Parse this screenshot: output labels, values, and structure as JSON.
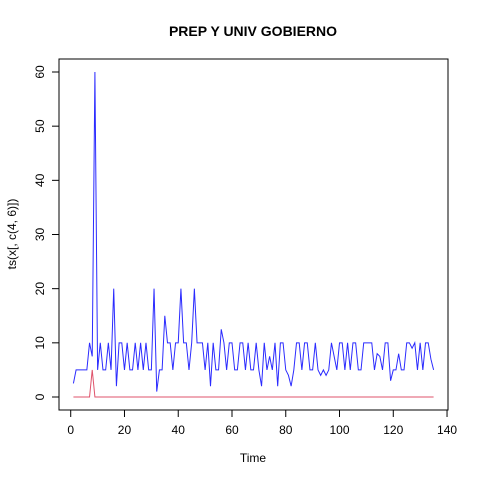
{
  "chart_data": {
    "type": "line",
    "title": "PREP Y UNIV GOBIERNO",
    "x_label": "Time",
    "y_label": "ts(x[, c(4, 6)])",
    "x": [
      1,
      2,
      3,
      4,
      5,
      6,
      7,
      8,
      9,
      10,
      11,
      12,
      13,
      14,
      15,
      16,
      17,
      18,
      19,
      20,
      21,
      22,
      23,
      24,
      25,
      26,
      27,
      28,
      29,
      30,
      31,
      32,
      33,
      34,
      35,
      36,
      37,
      38,
      39,
      40,
      41,
      42,
      43,
      44,
      45,
      46,
      47,
      48,
      49,
      50,
      51,
      52,
      53,
      54,
      55,
      56,
      57,
      58,
      59,
      60,
      61,
      62,
      63,
      64,
      65,
      66,
      67,
      68,
      69,
      70,
      71,
      72,
      73,
      74,
      75,
      76,
      77,
      78,
      79,
      80,
      81,
      82,
      83,
      84,
      85,
      86,
      87,
      88,
      89,
      90,
      91,
      92,
      93,
      94,
      95,
      96,
      97,
      98,
      99,
      100,
      101,
      102,
      103,
      104,
      105,
      106,
      107,
      108,
      109,
      110,
      111,
      112,
      113,
      114,
      115,
      116,
      117,
      118,
      119,
      120,
      121,
      122,
      123,
      124,
      125,
      126,
      127,
      128,
      129,
      130,
      131,
      132,
      133,
      134,
      135
    ],
    "series": [
      {
        "color": "#2b2bff",
        "values": [
          2.5,
          5,
          5,
          5,
          5,
          5,
          10,
          7.5,
          60,
          5,
          10,
          5,
          5,
          10,
          5,
          20,
          2,
          10,
          10,
          5,
          10,
          5,
          5,
          10,
          5,
          10,
          5,
          10,
          5,
          5,
          20,
          1,
          5,
          5,
          15,
          10,
          10,
          5,
          10,
          10,
          20,
          10,
          10,
          5,
          10,
          20,
          10,
          10,
          10,
          5,
          10,
          2,
          10,
          5,
          5,
          12.5,
          10,
          5,
          10,
          10,
          5,
          5,
          10,
          10,
          5,
          10,
          5,
          5,
          10,
          5,
          2,
          10,
          5,
          7.5,
          5,
          10,
          2,
          10,
          10,
          5,
          4,
          2,
          5,
          10,
          10,
          5,
          10,
          10,
          5,
          5,
          10,
          5,
          4,
          5,
          4,
          5,
          10,
          7.5,
          5,
          10,
          10,
          5,
          10,
          5,
          10,
          10,
          5,
          5,
          10,
          10,
          10,
          10,
          5,
          8,
          7.5,
          5,
          10,
          10,
          3,
          5,
          5,
          8,
          5,
          5,
          10,
          10,
          9,
          10,
          5,
          10,
          5,
          10,
          10,
          7,
          5
        ]
      },
      {
        "color": "#df536b",
        "values": [
          0,
          0,
          0,
          0,
          0,
          0,
          0,
          5,
          0,
          0,
          0,
          0,
          0,
          0,
          0,
          0,
          0,
          0,
          0,
          0,
          0,
          0,
          0,
          0,
          0,
          0,
          0,
          0,
          0,
          0,
          0,
          0,
          0,
          0,
          0,
          0,
          0,
          0,
          0,
          0,
          0,
          0,
          0,
          0,
          0,
          0,
          0,
          0,
          0,
          0,
          0,
          0,
          0,
          0,
          0,
          0,
          0,
          0,
          0,
          0,
          0,
          0,
          0,
          0,
          0,
          0,
          0,
          0,
          0,
          0,
          0,
          0,
          0,
          0,
          0,
          0,
          0,
          0,
          0,
          0,
          0,
          0,
          0,
          0,
          0,
          0,
          0,
          0,
          0,
          0,
          0,
          0,
          0,
          0,
          0,
          0,
          0,
          0,
          0,
          0,
          0,
          0,
          0,
          0,
          0,
          0,
          0,
          0,
          0,
          0,
          0,
          0,
          0,
          0,
          0,
          0,
          0,
          0,
          0,
          0,
          0,
          0,
          0,
          0,
          0,
          0,
          0,
          0,
          0,
          0,
          0,
          0,
          0,
          0,
          0
        ]
      }
    ],
    "xlim": [
      -4.36,
      140.36
    ],
    "ylim": [
      -2.4,
      62.4
    ],
    "xticks": [
      0,
      20,
      40,
      60,
      80,
      100,
      120,
      140
    ],
    "yticks": [
      0,
      10,
      20,
      30,
      40,
      50,
      60
    ]
  }
}
